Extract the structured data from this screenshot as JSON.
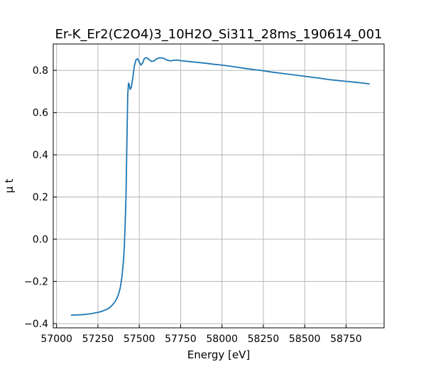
{
  "chart_data": {
    "type": "line",
    "title": "Er-K_Er2(C2O4)3_10H2O_Si311_28ms_190614_001",
    "xlabel": "Energy [eV]",
    "ylabel": "μ t",
    "xlim": [
      56980,
      58980
    ],
    "ylim": [
      -0.42,
      0.925
    ],
    "grid": true,
    "x_ticks": [
      57000,
      57250,
      57500,
      57750,
      58000,
      58250,
      58500,
      58750
    ],
    "x_tick_labels": [
      "57000",
      "57250",
      "57500",
      "57750",
      "58000",
      "58250",
      "58500",
      "58750"
    ],
    "y_ticks": [
      -0.4,
      -0.2,
      0.0,
      0.2,
      0.4,
      0.6,
      0.8
    ],
    "y_tick_labels": [
      "−0.4",
      "−0.2",
      "0.0",
      "0.2",
      "0.4",
      "0.6",
      "0.8"
    ],
    "line_color": "#1f77b4",
    "series": [
      {
        "x": [
          57090,
          57150,
          57200,
          57250,
          57280,
          57310,
          57330,
          57350,
          57365,
          57375,
          57385,
          57395,
          57405,
          57410,
          57415,
          57420,
          57425,
          57430,
          57435,
          57440,
          57445,
          57452,
          57460,
          57470,
          57480,
          57490,
          57500,
          57510,
          57520,
          57530,
          57540,
          57550,
          57560,
          57575,
          57590,
          57600,
          57615,
          57630,
          57650,
          57670,
          57690,
          57710,
          57730,
          57750,
          57800,
          57850,
          57900,
          57950,
          58000,
          58050,
          58100,
          58150,
          58200,
          58250,
          58300,
          58350,
          58400,
          58450,
          58500,
          58550,
          58600,
          58650,
          58700,
          58750,
          58800,
          58850,
          58890
        ],
        "y": [
          -0.36,
          -0.358,
          -0.354,
          -0.347,
          -0.34,
          -0.33,
          -0.318,
          -0.3,
          -0.28,
          -0.26,
          -0.23,
          -0.18,
          -0.1,
          -0.03,
          0.08,
          0.21,
          0.45,
          0.68,
          0.74,
          0.73,
          0.71,
          0.72,
          0.76,
          0.82,
          0.85,
          0.855,
          0.84,
          0.825,
          0.835,
          0.855,
          0.86,
          0.858,
          0.85,
          0.842,
          0.845,
          0.852,
          0.858,
          0.86,
          0.856,
          0.848,
          0.845,
          0.848,
          0.849,
          0.846,
          0.842,
          0.838,
          0.834,
          0.829,
          0.825,
          0.82,
          0.814,
          0.808,
          0.803,
          0.798,
          0.792,
          0.787,
          0.782,
          0.777,
          0.772,
          0.767,
          0.762,
          0.756,
          0.752,
          0.748,
          0.744,
          0.74,
          0.736
        ]
      }
    ]
  }
}
